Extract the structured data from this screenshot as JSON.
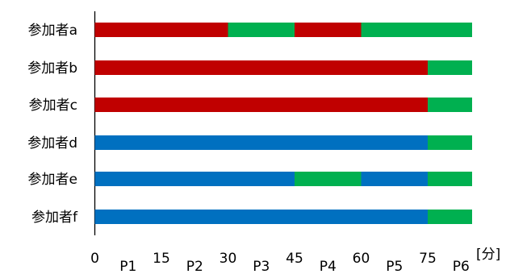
{
  "chart_data": {
    "type": "bar",
    "orientation": "horizontal",
    "stacked": true,
    "categories": [
      "参加者a",
      "参加者b",
      "参加者c",
      "参加者d",
      "参加者e",
      "参加者f"
    ],
    "segments": [
      [
        {
          "start": 0,
          "end": 30,
          "color": "red"
        },
        {
          "start": 30,
          "end": 45,
          "color": "green"
        },
        {
          "start": 45,
          "end": 60,
          "color": "red"
        },
        {
          "start": 60,
          "end": 85,
          "color": "green"
        }
      ],
      [
        {
          "start": 0,
          "end": 75,
          "color": "red"
        },
        {
          "start": 75,
          "end": 85,
          "color": "green"
        }
      ],
      [
        {
          "start": 0,
          "end": 75,
          "color": "red"
        },
        {
          "start": 75,
          "end": 85,
          "color": "green"
        }
      ],
      [
        {
          "start": 0,
          "end": 75,
          "color": "blue"
        },
        {
          "start": 75,
          "end": 85,
          "color": "green"
        }
      ],
      [
        {
          "start": 0,
          "end": 45,
          "color": "blue"
        },
        {
          "start": 45,
          "end": 60,
          "color": "green"
        },
        {
          "start": 60,
          "end": 75,
          "color": "blue"
        },
        {
          "start": 75,
          "end": 85,
          "color": "green"
        }
      ],
      [
        {
          "start": 0,
          "end": 75,
          "color": "blue"
        },
        {
          "start": 75,
          "end": 85,
          "color": "green"
        }
      ]
    ],
    "colors": {
      "red": "#c00000",
      "green": "#00b050",
      "blue": "#0070c0"
    },
    "xticks": [
      0,
      15,
      30,
      45,
      60,
      75
    ],
    "xtick_labels": [
      "0",
      "15",
      "30",
      "45",
      "60",
      "75"
    ],
    "xlim": [
      0,
      85
    ],
    "phase_labels": [
      {
        "label": "P1",
        "at": 7.5
      },
      {
        "label": "P2",
        "at": 22.5
      },
      {
        "label": "P3",
        "at": 37.5
      },
      {
        "label": "P4",
        "at": 52.5
      },
      {
        "label": "P5",
        "at": 67.5
      },
      {
        "label": "P6",
        "at": 82.5
      }
    ],
    "xunit": "[分]",
    "title": "",
    "xlabel": "",
    "ylabel": "",
    "grid": false,
    "legend": "none"
  }
}
